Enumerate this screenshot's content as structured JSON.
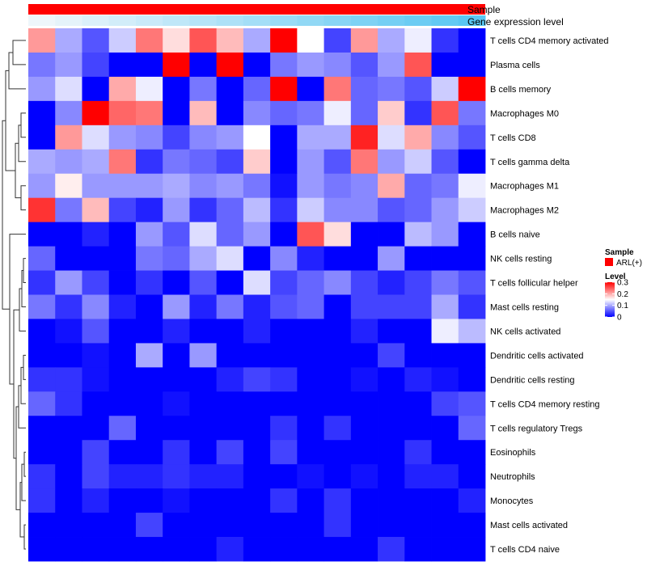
{
  "chart_data": {
    "type": "heatmap",
    "annotation_rows": [
      {
        "label": "Sample",
        "kind": "constant",
        "color": "#FF0000"
      },
      {
        "label": "Gene expression level",
        "kind": "gradient",
        "from": "#EEF6FB",
        "to": "#59C6F2"
      }
    ],
    "rows": [
      "T cells CD4 memory activated",
      "Plasma cells",
      "B cells memory",
      "Macrophages M0",
      "T cells CD8",
      "T cells gamma delta",
      "Macrophages M1",
      "Macrophages M2",
      "B cells naive",
      "NK cells resting",
      "T cells follicular helper",
      "Mast cells resting",
      "NK cells activated",
      "Dendritic cells activated",
      "Dendritic cells resting",
      "T cells CD4 memory resting",
      "T cells regulatory  Tregs",
      "Eosinophils",
      "Neutrophils",
      "Monocytes",
      "Mast cells activated",
      "T cells CD4 naive"
    ],
    "n_columns": 17,
    "values": [
      [
        0.21,
        0.1,
        0.05,
        0.12,
        0.23,
        0.17,
        0.25,
        0.19,
        0.1,
        0.3,
        0.15,
        0.04,
        0.21,
        0.1,
        0.14,
        0.03,
        0.0
      ],
      [
        0.07,
        0.09,
        0.04,
        0.0,
        0.0,
        0.3,
        0.0,
        0.3,
        0.0,
        0.07,
        0.09,
        0.08,
        0.05,
        0.09,
        0.25,
        0.0,
        0.0
      ],
      [
        0.09,
        0.13,
        0.0,
        0.2,
        0.14,
        0.0,
        0.07,
        0.0,
        0.06,
        0.3,
        0.0,
        0.23,
        0.06,
        0.07,
        0.05,
        0.12,
        0.3
      ],
      [
        0.0,
        0.08,
        0.3,
        0.24,
        0.23,
        0.0,
        0.19,
        0.0,
        0.08,
        0.06,
        0.07,
        0.14,
        0.06,
        0.18,
        0.03,
        0.25,
        0.07
      ],
      [
        0.0,
        0.21,
        0.13,
        0.09,
        0.08,
        0.04,
        0.08,
        0.09,
        0.15,
        0.0,
        0.1,
        0.1,
        0.28,
        0.13,
        0.2,
        0.08,
        0.05
      ],
      [
        0.1,
        0.09,
        0.1,
        0.23,
        0.03,
        0.07,
        0.06,
        0.04,
        0.18,
        0.0,
        0.09,
        0.05,
        0.23,
        0.09,
        0.12,
        0.05,
        0.0
      ],
      [
        0.09,
        0.16,
        0.09,
        0.09,
        0.09,
        0.1,
        0.08,
        0.09,
        0.07,
        0.01,
        0.09,
        0.07,
        0.08,
        0.2,
        0.06,
        0.07,
        0.14
      ],
      [
        0.27,
        0.07,
        0.19,
        0.04,
        0.02,
        0.09,
        0.03,
        0.06,
        0.11,
        0.03,
        0.12,
        0.08,
        0.08,
        0.05,
        0.06,
        0.09,
        0.12
      ],
      [
        0.0,
        0.0,
        0.02,
        0.0,
        0.09,
        0.05,
        0.13,
        0.06,
        0.09,
        0.0,
        0.25,
        0.17,
        0.0,
        0.0,
        0.11,
        0.09,
        0.0
      ],
      [
        0.06,
        0.0,
        0.0,
        0.0,
        0.07,
        0.06,
        0.1,
        0.13,
        0.0,
        0.08,
        0.02,
        0.0,
        0.0,
        0.09,
        0.0,
        0.0,
        0.0
      ],
      [
        0.03,
        0.09,
        0.04,
        0.0,
        0.03,
        0.0,
        0.05,
        0.0,
        0.13,
        0.04,
        0.06,
        0.08,
        0.04,
        0.02,
        0.04,
        0.07,
        0.05
      ],
      [
        0.07,
        0.03,
        0.08,
        0.02,
        0.0,
        0.09,
        0.02,
        0.07,
        0.02,
        0.05,
        0.06,
        0.0,
        0.04,
        0.04,
        0.04,
        0.1,
        0.03
      ],
      [
        0.0,
        0.01,
        0.05,
        0.0,
        0.0,
        0.02,
        0.0,
        0.0,
        0.02,
        0.0,
        0.0,
        0.0,
        0.02,
        0.0,
        0.0,
        0.14,
        0.11
      ],
      [
        0.0,
        0.0,
        0.01,
        0.0,
        0.1,
        0.0,
        0.09,
        0.0,
        0.0,
        0.0,
        0.0,
        0.0,
        0.0,
        0.04,
        0.0,
        0.0,
        0.0
      ],
      [
        0.03,
        0.03,
        0.01,
        0.0,
        0.0,
        0.0,
        0.0,
        0.02,
        0.04,
        0.03,
        0.0,
        0.0,
        0.01,
        0.0,
        0.02,
        0.01,
        0.0
      ],
      [
        0.06,
        0.03,
        0.0,
        0.0,
        0.0,
        0.01,
        0.0,
        0.0,
        0.0,
        0.0,
        0.0,
        0.0,
        0.0,
        0.0,
        0.0,
        0.04,
        0.05
      ],
      [
        0.0,
        0.0,
        0.0,
        0.06,
        0.0,
        0.0,
        0.0,
        0.0,
        0.0,
        0.03,
        0.0,
        0.03,
        0.0,
        0.0,
        0.0,
        0.0,
        0.06
      ],
      [
        0.0,
        0.0,
        0.04,
        0.0,
        0.0,
        0.03,
        0.0,
        0.04,
        0.0,
        0.04,
        0.0,
        0.0,
        0.0,
        0.0,
        0.03,
        0.0,
        0.0
      ],
      [
        0.03,
        0.0,
        0.04,
        0.02,
        0.02,
        0.03,
        0.02,
        0.02,
        0.0,
        0.0,
        0.01,
        0.0,
        0.01,
        0.0,
        0.02,
        0.02,
        0.0
      ],
      [
        0.03,
        0.0,
        0.02,
        0.0,
        0.0,
        0.01,
        0.0,
        0.0,
        0.0,
        0.03,
        0.0,
        0.03,
        0.0,
        0.0,
        0.0,
        0.0,
        0.02
      ],
      [
        0.0,
        0.0,
        0.0,
        0.0,
        0.04,
        0.0,
        0.0,
        0.0,
        0.0,
        0.0,
        0.0,
        0.03,
        0.0,
        0.0,
        0.0,
        0.0,
        0.0
      ],
      [
        0.0,
        0.0,
        0.0,
        0.0,
        0.0,
        0.0,
        0.0,
        0.02,
        0.0,
        0.0,
        0.0,
        0.0,
        0.0,
        0.03,
        0.0,
        0.0,
        0.0
      ]
    ],
    "color_scale": {
      "min": 0,
      "mid": 0.15,
      "max": 0.3,
      "low": "#0000FF",
      "mid_color": "#FFFFFF",
      "high": "#FF0000"
    },
    "legend": {
      "sample": {
        "title": "Sample",
        "entries": [
          {
            "label": "ARL(+)",
            "color": "#FF0000"
          }
        ]
      },
      "level": {
        "title": "Level",
        "ticks": [
          {
            "label": "0.3",
            "value": 0.3
          },
          {
            "label": "0.2",
            "value": 0.2
          },
          {
            "label": "0.1",
            "value": 0.1
          },
          {
            "label": "0",
            "value": 0
          }
        ]
      }
    },
    "row_dendrogram": true
  }
}
